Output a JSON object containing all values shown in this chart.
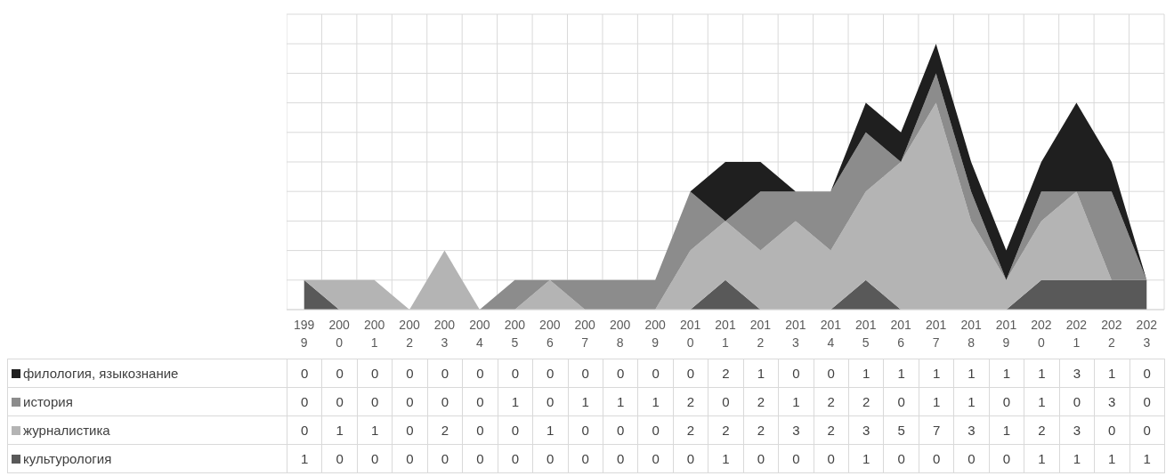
{
  "chart_data": {
    "type": "area",
    "stacked": true,
    "categories": [
      "1999",
      "2000",
      "2001",
      "2002",
      "2003",
      "2004",
      "2005",
      "2006",
      "2007",
      "2008",
      "2009",
      "2010",
      "2011",
      "2012",
      "2013",
      "2014",
      "2015",
      "2016",
      "2017",
      "2018",
      "2019",
      "2020",
      "2021",
      "2022",
      "2023"
    ],
    "series": [
      {
        "name": "культурология",
        "color": "#595959",
        "values": [
          1,
          0,
          0,
          0,
          0,
          0,
          0,
          0,
          0,
          0,
          0,
          0,
          1,
          0,
          0,
          0,
          1,
          0,
          0,
          0,
          0,
          1,
          1,
          1,
          1
        ]
      },
      {
        "name": "журналистика",
        "color": "#b4b4b4",
        "values": [
          0,
          1,
          1,
          0,
          2,
          0,
          0,
          1,
          0,
          0,
          0,
          2,
          2,
          2,
          3,
          2,
          3,
          5,
          7,
          3,
          1,
          2,
          3,
          0,
          0
        ]
      },
      {
        "name": "история",
        "color": "#8c8c8c",
        "values": [
          0,
          0,
          0,
          0,
          0,
          0,
          1,
          0,
          1,
          1,
          1,
          2,
          0,
          2,
          1,
          2,
          2,
          0,
          1,
          1,
          0,
          1,
          0,
          3,
          0
        ]
      },
      {
        "name": "филология, языкознание",
        "color": "#1f1f1f",
        "values": [
          0,
          0,
          0,
          0,
          0,
          0,
          0,
          0,
          0,
          0,
          0,
          0,
          2,
          1,
          0,
          0,
          1,
          1,
          1,
          1,
          1,
          1,
          3,
          1,
          0
        ]
      }
    ],
    "ylim": [
      0,
      10
    ],
    "yticks": [
      {
        "value": 0,
        "label": null
      },
      {
        "value": 1,
        "label": null
      },
      {
        "value": 2,
        "label": null
      },
      {
        "value": 3,
        "label": null
      },
      {
        "value": 4,
        "label": null
      },
      {
        "value": 5,
        "label": null
      },
      {
        "value": 6,
        "label": null
      },
      {
        "value": 7,
        "label": null
      },
      {
        "value": 8,
        "label": null
      },
      {
        "value": 9,
        "label": null
      },
      {
        "value": 10,
        "label": null
      }
    ],
    "tick_labels": "x",
    "grid": true,
    "legend": "bottom left",
    "data_labels": true
  }
}
